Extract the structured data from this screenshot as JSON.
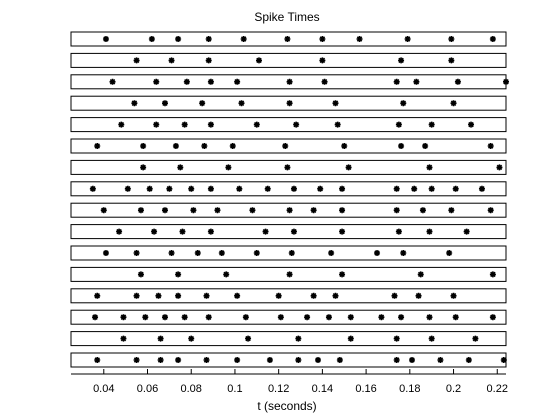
{
  "chart_data": {
    "type": "scatter",
    "title": "Spike Times",
    "xlabel": "t (seconds)",
    "ylabel": "",
    "xlim": [
      0.025,
      0.224
    ],
    "x_ticks": [
      0.04,
      0.06,
      0.08,
      0.1,
      0.12,
      0.14,
      0.16,
      0.18,
      0.2,
      0.22
    ],
    "x_tick_labels": [
      "0.04",
      "0.06",
      "0.08",
      "0.1",
      "0.12",
      "0.14",
      "0.16",
      "0.18",
      "0.2",
      "0.22"
    ],
    "grid": false,
    "legend": "none",
    "marker": "*",
    "marker_color": "#000000",
    "trials": [
      [
        0.041,
        0.062,
        0.074,
        0.088,
        0.104,
        0.124,
        0.14,
        0.157,
        0.179,
        0.199,
        0.218
      ],
      [
        0.055,
        0.071,
        0.088,
        0.111,
        0.14,
        0.176,
        0.199
      ],
      [
        0.044,
        0.064,
        0.078,
        0.089,
        0.101,
        0.125,
        0.141,
        0.174,
        0.183,
        0.202,
        0.224
      ],
      [
        0.054,
        0.068,
        0.085,
        0.103,
        0.125,
        0.146,
        0.177,
        0.2
      ],
      [
        0.048,
        0.064,
        0.077,
        0.089,
        0.11,
        0.128,
        0.147,
        0.175,
        0.19,
        0.208
      ],
      [
        0.037,
        0.058,
        0.073,
        0.086,
        0.099,
        0.123,
        0.15,
        0.176,
        0.187,
        0.217
      ],
      [
        0.058,
        0.075,
        0.097,
        0.124,
        0.152,
        0.189,
        0.221
      ],
      [
        0.035,
        0.051,
        0.061,
        0.07,
        0.08,
        0.089,
        0.102,
        0.115,
        0.127,
        0.139,
        0.149,
        0.174,
        0.182,
        0.19,
        0.201,
        0.213
      ],
      [
        0.04,
        0.057,
        0.068,
        0.081,
        0.092,
        0.108,
        0.125,
        0.136,
        0.149,
        0.174,
        0.186,
        0.199,
        0.217
      ],
      [
        0.047,
        0.063,
        0.076,
        0.089,
        0.114,
        0.127,
        0.149,
        0.175,
        0.189,
        0.206
      ],
      [
        0.041,
        0.055,
        0.071,
        0.083,
        0.094,
        0.11,
        0.126,
        0.144,
        0.165,
        0.177,
        0.198
      ],
      [
        0.057,
        0.074,
        0.096,
        0.125,
        0.149,
        0.185,
        0.218
      ],
      [
        0.037,
        0.055,
        0.065,
        0.074,
        0.087,
        0.101,
        0.12,
        0.136,
        0.146,
        0.173,
        0.184,
        0.2
      ],
      [
        0.036,
        0.049,
        0.059,
        0.068,
        0.077,
        0.088,
        0.105,
        0.121,
        0.133,
        0.143,
        0.153,
        0.167,
        0.176,
        0.189,
        0.201,
        0.218
      ],
      [
        0.049,
        0.066,
        0.08,
        0.106,
        0.129,
        0.153,
        0.174,
        0.19,
        0.21
      ],
      [
        0.037,
        0.055,
        0.066,
        0.074,
        0.087,
        0.101,
        0.116,
        0.129,
        0.138,
        0.148,
        0.174,
        0.181,
        0.194,
        0.207,
        0.223
      ]
    ]
  }
}
